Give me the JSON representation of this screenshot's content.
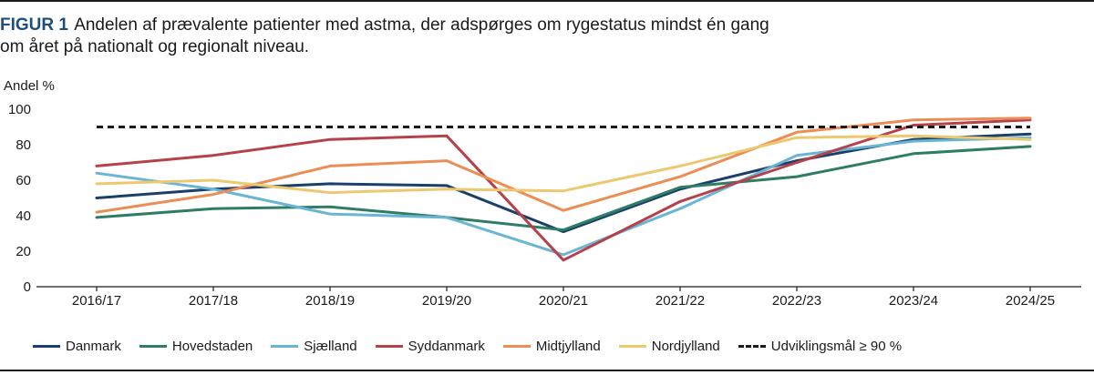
{
  "figure": {
    "label": "FIGUR 1",
    "title": "Andelen af prævalente patienter med astma, der adspørges om rygestatus mindst én gang om året på nationalt og regionalt niveau."
  },
  "chart_data": {
    "type": "line",
    "title": "Andelen af prævalente patienter med astma, der adspørges om rygestatus mindst én gang om året på nationalt og regionalt niveau.",
    "ylabel": "Andel %",
    "xlabel": "",
    "ylim": [
      0,
      100
    ],
    "yticks": [
      0,
      20,
      40,
      60,
      80,
      100
    ],
    "grid": false,
    "legend_position": "bottom",
    "categories": [
      "2016/17",
      "2017/18",
      "2018/19",
      "2019/20",
      "2020/21",
      "2021/22",
      "2022/23",
      "2023/24",
      "2024/25"
    ],
    "series": [
      {
        "name": "Danmark",
        "color": "#1b3f6b",
        "values": [
          50,
          55,
          58,
          57,
          31,
          55,
          71,
          83,
          86
        ]
      },
      {
        "name": "Hovedstaden",
        "color": "#2e7d66",
        "values": [
          39,
          44,
          45,
          39,
          32,
          56,
          62,
          75,
          79
        ]
      },
      {
        "name": "Sjælland",
        "color": "#6bb5d4",
        "values": [
          64,
          55,
          41,
          39,
          18,
          44,
          74,
          82,
          84
        ]
      },
      {
        "name": "Syddanmark",
        "color": "#b5414a",
        "values": [
          68,
          74,
          83,
          85,
          15,
          48,
          70,
          91,
          94
        ]
      },
      {
        "name": "Midtjylland",
        "color": "#ea8e55",
        "values": [
          42,
          52,
          68,
          71,
          43,
          62,
          87,
          94,
          95
        ]
      },
      {
        "name": "Nordjylland",
        "color": "#ecc970",
        "values": [
          58,
          60,
          53,
          55,
          54,
          68,
          84,
          85,
          83
        ]
      },
      {
        "name": "Udviklingsmål ≥ 90 %",
        "color": "#1a1a1a",
        "dashed": true,
        "values": [
          90,
          90,
          90,
          90,
          90,
          90,
          90,
          90,
          90
        ]
      }
    ]
  }
}
